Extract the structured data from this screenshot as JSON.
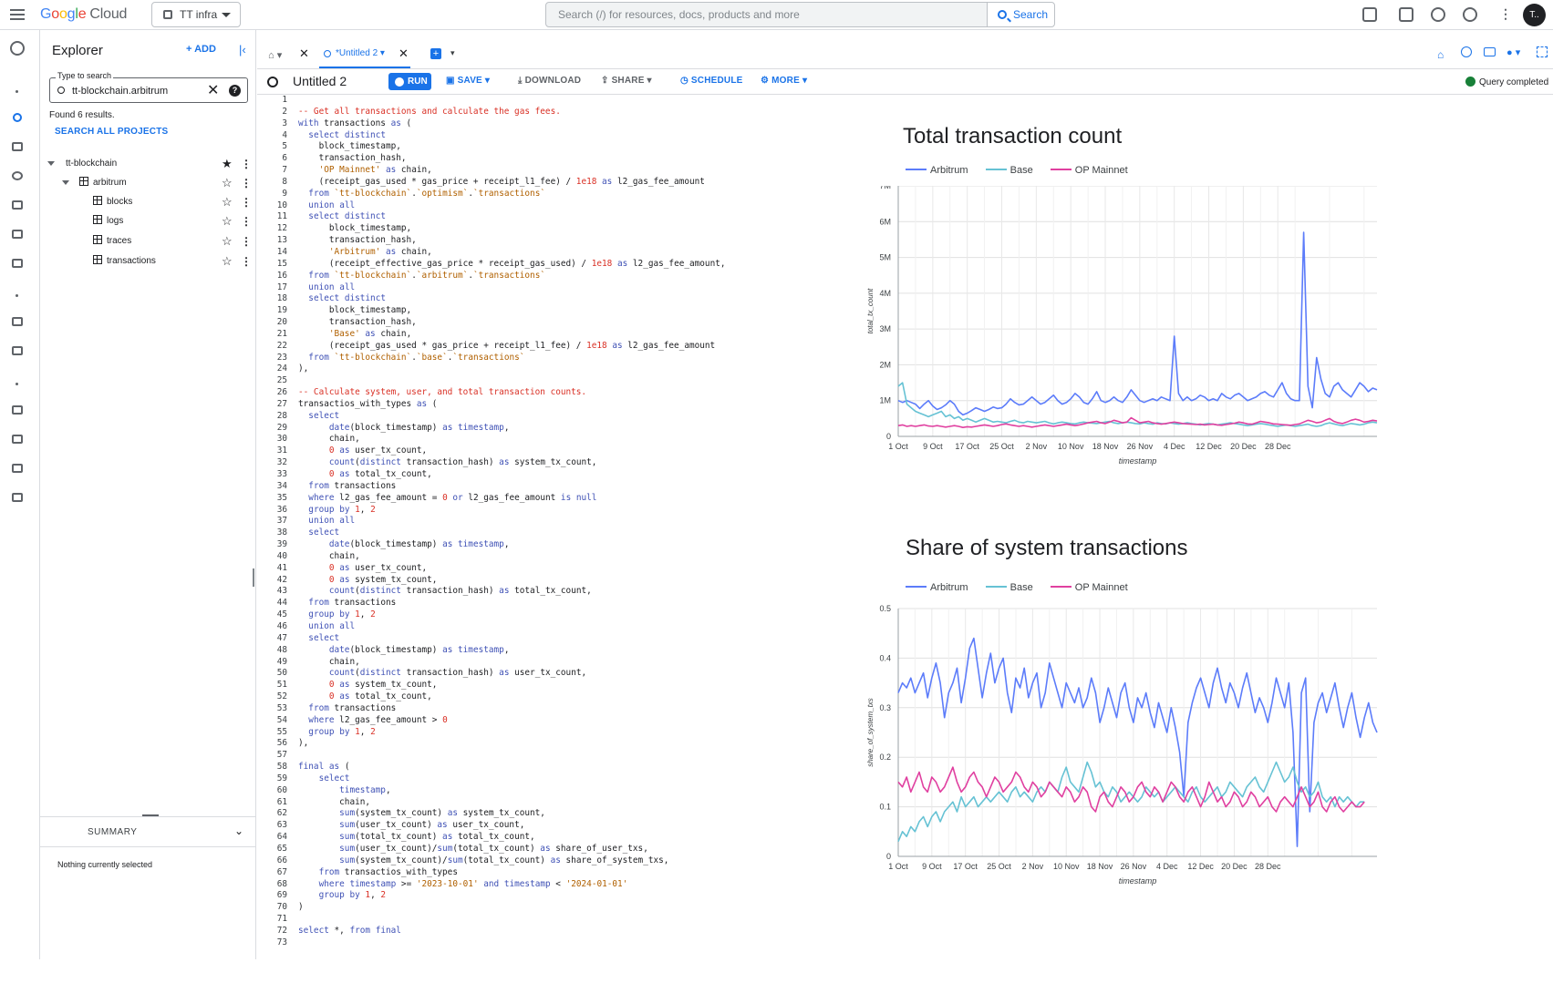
{
  "topbar": {
    "logo": {
      "g": "G",
      "o1": "o",
      "o2": "o",
      "g2": "g",
      "l": "l",
      "e": "e",
      "cloud": "Cloud"
    },
    "project": "TT infra",
    "search_placeholder": "Search (/) for resources, docs, products and more",
    "search_button": "Search",
    "avatar": "T.."
  },
  "explorer": {
    "title": "Explorer",
    "add": "+ ADD",
    "filter_label": "Type to search",
    "filter_value": "tt-blockchain.arbitrum",
    "found": "Found 6 results.",
    "search_all": "SEARCH ALL PROJECTS",
    "tree": [
      {
        "label": "tt-blockchain",
        "depth": 0,
        "expanded": true,
        "starred": true
      },
      {
        "label": "arbitrum",
        "depth": 1,
        "expanded": true,
        "starred": false
      },
      {
        "label": "blocks",
        "depth": 2,
        "starred": false
      },
      {
        "label": "logs",
        "depth": 2,
        "starred": false
      },
      {
        "label": "traces",
        "depth": 2,
        "starred": false
      },
      {
        "label": "transactions",
        "depth": 2,
        "starred": false
      }
    ],
    "summary_label": "SUMMARY",
    "nothing_selected": "Nothing currently selected"
  },
  "tabs": {
    "active": "*Untitled 2"
  },
  "toolbar": {
    "query_title": "Untitled 2",
    "run": "RUN",
    "save": "SAVE",
    "download": "DOWNLOAD",
    "share": "SHARE",
    "schedule": "SCHEDULE",
    "more": "MORE",
    "status": "Query completed"
  },
  "editor": {
    "lines": [
      "",
      "-- Get all transactions and calculate the gas fees.",
      "with transactions as (",
      "  select distinct",
      "    block_timestamp,",
      "    transaction_hash,",
      "    'OP Mainnet' as chain,",
      "    (receipt_gas_used * gas_price + receipt_l1_fee) / 1e18 as l2_gas_fee_amount",
      "  from `tt-blockchain`.`optimism`.`transactions`",
      "  union all",
      "  select distinct",
      "      block_timestamp,",
      "      transaction_hash,",
      "      'Arbitrum' as chain,",
      "      (receipt_effective_gas_price * receipt_gas_used) / 1e18 as l2_gas_fee_amount,",
      "  from `tt-blockchain`.`arbitrum`.`transactions`",
      "  union all",
      "  select distinct",
      "      block_timestamp,",
      "      transaction_hash,",
      "      'Base' as chain,",
      "      (receipt_gas_used * gas_price + receipt_l1_fee) / 1e18 as l2_gas_fee_amount",
      "  from `tt-blockchain`.`base`.`transactions`",
      "),",
      "",
      "-- Calculate system, user, and total transaction counts.",
      "transactios_with_types as (",
      "  select",
      "      date(block_timestamp) as timestamp,",
      "      chain,",
      "      0 as user_tx_count,",
      "      count(distinct transaction_hash) as system_tx_count,",
      "      0 as total_tx_count,",
      "  from transactions",
      "  where l2_gas_fee_amount = 0 or l2_gas_fee_amount is null",
      "  group by 1, 2",
      "  union all",
      "  select",
      "      date(block_timestamp) as timestamp,",
      "      chain,",
      "      0 as user_tx_count,",
      "      0 as system_tx_count,",
      "      count(distinct transaction_hash) as total_tx_count,",
      "  from transactions",
      "  group by 1, 2",
      "  union all",
      "  select",
      "      date(block_timestamp) as timestamp,",
      "      chain,",
      "      count(distinct transaction_hash) as user_tx_count,",
      "      0 as system_tx_count,",
      "      0 as total_tx_count,",
      "  from transactions",
      "  where l2_gas_fee_amount > 0",
      "  group by 1, 2",
      "),",
      "",
      "final as (",
      "    select",
      "        timestamp,",
      "        chain,",
      "        sum(system_tx_count) as system_tx_count,",
      "        sum(user_tx_count) as user_tx_count,",
      "        sum(total_tx_count) as total_tx_count,",
      "        sum(user_tx_count)/sum(total_tx_count) as share_of_user_txs,",
      "        sum(system_tx_count)/sum(total_tx_count) as share_of_system_txs,",
      "    from transactios_with_types",
      "    where timestamp >= '2023-10-01' and timestamp < '2024-01-01'",
      "    group by 1, 2",
      ")",
      "",
      "select *, from final",
      ""
    ]
  },
  "colors": {
    "arbitrum": "#5c7cfa",
    "base": "#66c2d4",
    "op": "#e040a0",
    "accent": "#1a73e8"
  },
  "chart_data": [
    {
      "type": "line",
      "title": "Total transaction count",
      "xlabel": "timestamp",
      "ylabel": "total_tx_count",
      "x_ticks": [
        "1 Oct",
        "9 Oct",
        "17 Oct",
        "25 Oct",
        "2 Nov",
        "10 Nov",
        "18 Nov",
        "26 Nov",
        "4 Dec",
        "12 Dec",
        "20 Dec",
        "28 Dec"
      ],
      "y_ticks": [
        "0",
        "1M",
        "2M",
        "3M",
        "4M",
        "5M",
        "6M",
        "7M"
      ],
      "ylim": [
        0,
        7000000
      ],
      "legend": "top-left",
      "grid": true,
      "x_dates_start": "2023-10-01",
      "series": [
        {
          "name": "Arbitrum",
          "color": "#5c7cfa",
          "values": [
            1000000,
            950000,
            1000000,
            950000,
            900000,
            780000,
            900000,
            1000000,
            850000,
            750000,
            800000,
            880000,
            1000000,
            900000,
            700000,
            600000,
            650000,
            720000,
            800000,
            750000,
            700000,
            750000,
            820000,
            780000,
            800000,
            900000,
            1050000,
            950000,
            880000,
            900000,
            1000000,
            1100000,
            1000000,
            900000,
            950000,
            1050000,
            1150000,
            1000000,
            900000,
            950000,
            1050000,
            1200000,
            1100000,
            950000,
            900000,
            1050000,
            1250000,
            1000000,
            950000,
            1000000,
            1100000,
            1000000,
            950000,
            1100000,
            1300000,
            1150000,
            1000000,
            950000,
            1000000,
            1050000,
            1000000,
            1100000,
            1050000,
            1000000,
            2800000,
            1200000,
            1000000,
            1100000,
            1000000,
            1050000,
            1150000,
            1100000,
            1000000,
            1050000,
            1000000,
            1200000,
            1100000,
            1050000,
            1150000,
            1200000,
            1100000,
            1000000,
            1050000,
            1100000,
            1200000,
            1250000,
            1150000,
            1100000,
            1300000,
            1500000,
            1200000,
            1050000,
            1000000,
            1000000,
            5700000,
            1400000,
            800000,
            2200000,
            1600000,
            1200000,
            1100000,
            1400000,
            1500000,
            1300000,
            1200000,
            1100000,
            1300000,
            1500000,
            1400000,
            1250000,
            1350000,
            1300000
          ]
        },
        {
          "name": "Base",
          "color": "#66c2d4",
          "values": [
            1400000,
            1500000,
            900000,
            800000,
            700000,
            650000,
            600000,
            550000,
            600000,
            650000,
            700000,
            550000,
            600000,
            500000,
            550000,
            450000,
            500000,
            450000,
            400000,
            450000,
            500000,
            450000,
            400000,
            420000,
            400000,
            380000,
            420000,
            450000,
            400000,
            380000,
            420000,
            400000,
            380000,
            400000,
            420000,
            380000,
            350000,
            380000,
            400000,
            380000,
            360000,
            350000,
            380000,
            400000,
            380000,
            370000,
            360000,
            380000,
            400000,
            420000,
            380000,
            360000,
            380000,
            400000,
            380000,
            360000,
            350000,
            380000,
            360000,
            340000,
            380000,
            360000,
            350000,
            380000,
            360000,
            340000,
            360000,
            380000,
            360000,
            340000,
            320000,
            340000,
            360000,
            340000,
            320000,
            340000,
            360000,
            380000,
            360000,
            340000,
            320000,
            300000,
            320000,
            340000,
            360000,
            340000,
            320000,
            300000,
            280000,
            300000,
            320000,
            300000,
            280000,
            300000,
            320000,
            340000,
            300000,
            280000,
            300000,
            350000,
            380000,
            350000,
            320000,
            300000,
            330000,
            360000,
            340000,
            320000,
            340000,
            380000,
            400000,
            380000
          ]
        },
        {
          "name": "OP Mainnet",
          "color": "#e040a0",
          "values": [
            300000,
            320000,
            280000,
            300000,
            280000,
            300000,
            320000,
            290000,
            280000,
            300000,
            280000,
            260000,
            280000,
            300000,
            280000,
            250000,
            270000,
            260000,
            280000,
            300000,
            320000,
            300000,
            280000,
            300000,
            330000,
            350000,
            320000,
            300000,
            280000,
            300000,
            280000,
            260000,
            280000,
            300000,
            320000,
            300000,
            280000,
            300000,
            320000,
            340000,
            320000,
            300000,
            320000,
            350000,
            380000,
            400000,
            420000,
            380000,
            360000,
            400000,
            450000,
            420000,
            380000,
            400000,
            520000,
            450000,
            380000,
            400000,
            420000,
            380000,
            360000,
            340000,
            360000,
            380000,
            400000,
            380000,
            360000,
            350000,
            340000,
            330000,
            340000,
            320000,
            330000,
            340000,
            320000,
            310000,
            330000,
            350000,
            370000,
            400000,
            380000,
            350000,
            340000,
            380000,
            420000,
            400000,
            380000,
            350000,
            340000,
            330000,
            320000,
            310000,
            330000,
            350000,
            400000,
            450000,
            420000,
            380000,
            400000,
            450000,
            500000,
            420000,
            380000,
            360000,
            400000,
            450000,
            480000,
            450000,
            400000,
            420000,
            450000,
            430000
          ]
        }
      ]
    },
    {
      "type": "line",
      "title": "Share of system transactions",
      "xlabel": "timestamp",
      "ylabel": "share_of_system_txs",
      "x_ticks": [
        "1 Oct",
        "9 Oct",
        "17 Oct",
        "25 Oct",
        "2 Nov",
        "10 Nov",
        "18 Nov",
        "26 Nov",
        "4 Dec",
        "12 Dec",
        "20 Dec",
        "28 Dec"
      ],
      "y_ticks": [
        "0",
        "0.1",
        "0.2",
        "0.3",
        "0.4",
        "0.5"
      ],
      "ylim": [
        0,
        0.5
      ],
      "legend": "top-left",
      "grid": true,
      "x_dates_start": "2023-10-01",
      "series": [
        {
          "name": "Arbitrum",
          "color": "#5c7cfa",
          "values": [
            0.33,
            0.35,
            0.34,
            0.36,
            0.33,
            0.35,
            0.37,
            0.32,
            0.36,
            0.39,
            0.35,
            0.28,
            0.33,
            0.35,
            0.38,
            0.31,
            0.36,
            0.42,
            0.44,
            0.38,
            0.32,
            0.37,
            0.41,
            0.35,
            0.38,
            0.4,
            0.33,
            0.29,
            0.36,
            0.34,
            0.38,
            0.32,
            0.35,
            0.37,
            0.3,
            0.33,
            0.39,
            0.36,
            0.33,
            0.3,
            0.35,
            0.33,
            0.31,
            0.34,
            0.3,
            0.32,
            0.36,
            0.33,
            0.27,
            0.3,
            0.34,
            0.31,
            0.28,
            0.33,
            0.35,
            0.3,
            0.27,
            0.32,
            0.3,
            0.33,
            0.29,
            0.26,
            0.31,
            0.28,
            0.25,
            0.3,
            0.26,
            0.21,
            0.12,
            0.27,
            0.31,
            0.34,
            0.36,
            0.33,
            0.3,
            0.35,
            0.38,
            0.34,
            0.31,
            0.35,
            0.33,
            0.3,
            0.34,
            0.37,
            0.33,
            0.29,
            0.32,
            0.3,
            0.27,
            0.31,
            0.36,
            0.33,
            0.3,
            0.35,
            0.25,
            0.02,
            0.33,
            0.36,
            0.09,
            0.27,
            0.31,
            0.33,
            0.29,
            0.32,
            0.35,
            0.3,
            0.26,
            0.3,
            0.33,
            0.28,
            0.24,
            0.28,
            0.31,
            0.27,
            0.25
          ]
        },
        {
          "name": "Base",
          "color": "#66c2d4",
          "values": [
            0.03,
            0.05,
            0.04,
            0.06,
            0.05,
            0.07,
            0.08,
            0.06,
            0.08,
            0.09,
            0.07,
            0.09,
            0.1,
            0.11,
            0.09,
            0.12,
            0.1,
            0.11,
            0.12,
            0.1,
            0.11,
            0.12,
            0.11,
            0.12,
            0.13,
            0.12,
            0.11,
            0.13,
            0.14,
            0.12,
            0.13,
            0.12,
            0.11,
            0.13,
            0.14,
            0.13,
            0.15,
            0.14,
            0.13,
            0.16,
            0.18,
            0.15,
            0.14,
            0.13,
            0.16,
            0.19,
            0.17,
            0.14,
            0.15,
            0.13,
            0.12,
            0.14,
            0.13,
            0.11,
            0.12,
            0.13,
            0.12,
            0.11,
            0.12,
            0.14,
            0.13,
            0.12,
            0.13,
            0.11,
            0.12,
            0.13,
            0.14,
            0.13,
            0.12,
            0.11,
            0.13,
            0.14,
            0.12,
            0.11,
            0.12,
            0.13,
            0.14,
            0.12,
            0.13,
            0.15,
            0.14,
            0.13,
            0.12,
            0.14,
            0.15,
            0.16,
            0.14,
            0.13,
            0.15,
            0.17,
            0.19,
            0.17,
            0.15,
            0.16,
            0.18,
            0.15,
            0.13,
            0.14,
            0.12,
            0.13,
            0.15,
            0.12,
            0.11,
            0.12,
            0.1,
            0.12,
            0.11,
            0.12,
            0.11,
            0.1,
            0.11,
            0.11
          ]
        },
        {
          "name": "OP Mainnet",
          "color": "#e040a0",
          "values": [
            0.15,
            0.14,
            0.16,
            0.13,
            0.15,
            0.17,
            0.14,
            0.13,
            0.16,
            0.15,
            0.13,
            0.14,
            0.16,
            0.18,
            0.15,
            0.13,
            0.14,
            0.16,
            0.17,
            0.15,
            0.14,
            0.12,
            0.14,
            0.16,
            0.15,
            0.13,
            0.14,
            0.15,
            0.17,
            0.16,
            0.14,
            0.13,
            0.15,
            0.14,
            0.12,
            0.13,
            0.15,
            0.14,
            0.13,
            0.12,
            0.14,
            0.13,
            0.11,
            0.12,
            0.14,
            0.13,
            0.1,
            0.09,
            0.12,
            0.13,
            0.11,
            0.1,
            0.12,
            0.14,
            0.13,
            0.11,
            0.12,
            0.14,
            0.15,
            0.13,
            0.12,
            0.14,
            0.13,
            0.11,
            0.13,
            0.15,
            0.14,
            0.12,
            0.11,
            0.13,
            0.14,
            0.12,
            0.1,
            0.12,
            0.15,
            0.13,
            0.11,
            0.12,
            0.1,
            0.11,
            0.13,
            0.12,
            0.1,
            0.11,
            0.13,
            0.12,
            0.1,
            0.11,
            0.12,
            0.1,
            0.09,
            0.11,
            0.12,
            0.11,
            0.1,
            0.12,
            0.14,
            0.12,
            0.1,
            0.11,
            0.13,
            0.1,
            0.09,
            0.11,
            0.12,
            0.1,
            0.09,
            0.1,
            0.11,
            0.1,
            0.1,
            0.11
          ]
        }
      ]
    }
  ]
}
